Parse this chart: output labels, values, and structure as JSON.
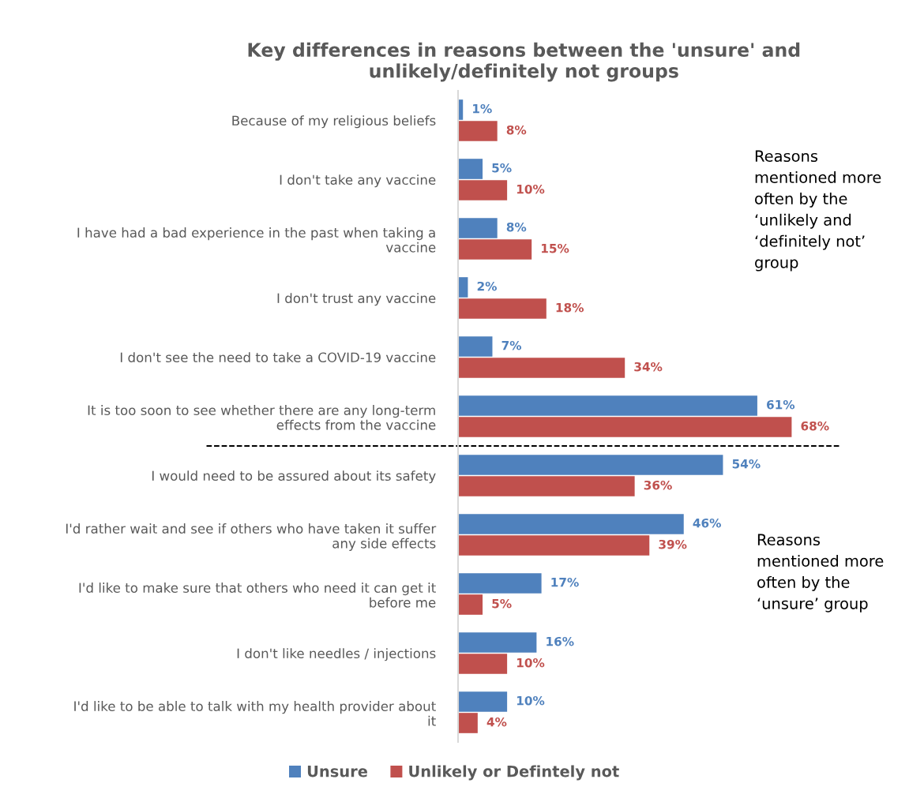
{
  "chart_data": {
    "type": "bar",
    "orientation": "horizontal",
    "title": "Key differences in reasons between the 'unsure' and\nunlikely/definitely not groups",
    "categories": [
      "Because of my religious beliefs",
      "I don't take any vaccine",
      "I have had a bad experience in the past when taking a\nvaccine",
      "I don't trust any vaccine",
      "I don't see the need to take a COVID-19 vaccine",
      "It is too soon to see whether there are any long-term\neffects from the vaccine",
      "I would need to be assured about its safety",
      "I'd rather wait and see if others who have taken it suffer\nany side effects",
      "I'd like to make sure that others who need it can get it\nbefore me",
      "I don't like needles / injections",
      "I'd like to be able to talk with my health provider about\nit"
    ],
    "series": [
      {
        "name": "Unsure",
        "color": "#4f81bd",
        "values": [
          1,
          5,
          8,
          2,
          7,
          61,
          54,
          46,
          17,
          16,
          10
        ],
        "value_labels": [
          "1%",
          "5%",
          "8%",
          "2%",
          "7%",
          "61%",
          "54%",
          "46%",
          "17%",
          "16%",
          "10%"
        ]
      },
      {
        "name": "Unlikely or Defintely not",
        "color": "#c0504d",
        "values": [
          8,
          10,
          15,
          18,
          34,
          68,
          36,
          39,
          5,
          10,
          4
        ],
        "value_labels": [
          "8%",
          "10%",
          "15%",
          "18%",
          "34%",
          "68%",
          "36%",
          "39%",
          "5%",
          "10%",
          "4%"
        ]
      }
    ],
    "legend": "bottom",
    "grid": false,
    "annotations": [
      "Reasons\nmentioned more\noften by the\n‘unlikely and\n‘definitely not’\ngroup",
      "Reasons\nmentioned more\noften by the\n‘unsure’ group"
    ]
  }
}
